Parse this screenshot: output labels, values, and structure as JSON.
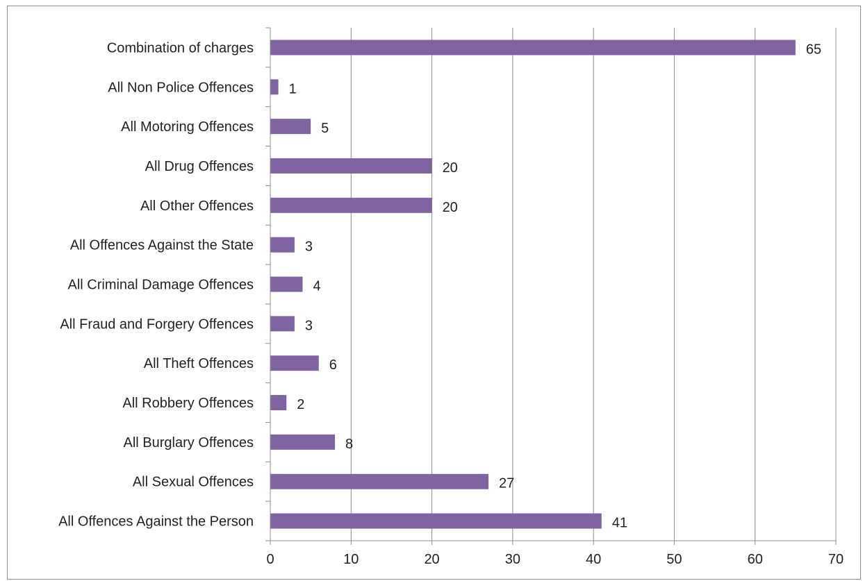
{
  "chart_data": {
    "type": "bar",
    "orientation": "horizontal",
    "categories": [
      "Combination of charges",
      "All Non Police Offences",
      "All Motoring Offences",
      "All Drug Offences",
      "All Other Offences",
      "All Offences Against the State",
      "All Criminal Damage Offences",
      "All Fraud and Forgery Offences",
      "All Theft Offences",
      "All Robbery Offences",
      "All Burglary Offences",
      "All Sexual Offences",
      "All Offences Against the Person"
    ],
    "values": [
      65,
      1,
      5,
      20,
      20,
      3,
      4,
      3,
      6,
      2,
      8,
      27,
      41
    ],
    "xlim": [
      0,
      70
    ],
    "xticks": [
      0,
      10,
      20,
      30,
      40,
      50,
      60,
      70
    ],
    "data_labels": true,
    "grid": "vertical",
    "legend": "none",
    "bar_color": "#8064a2"
  }
}
